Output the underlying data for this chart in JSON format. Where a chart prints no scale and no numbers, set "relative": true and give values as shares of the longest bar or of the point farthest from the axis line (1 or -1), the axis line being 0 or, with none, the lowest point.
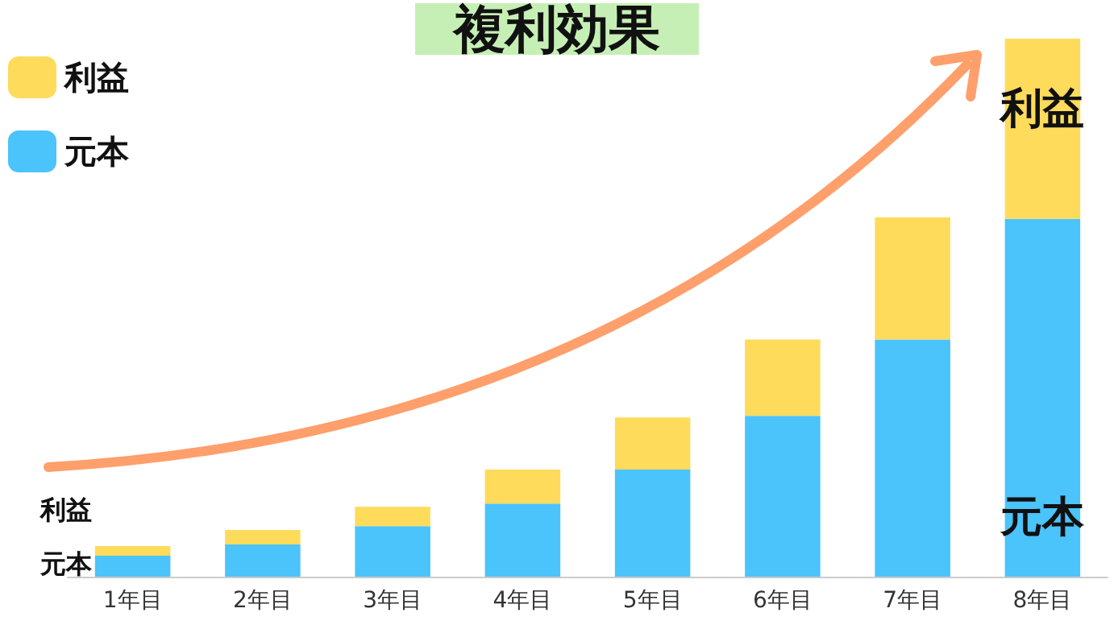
{
  "chart_data": {
    "type": "bar",
    "title": "複利効果",
    "relative": true,
    "stacked": true,
    "legend": "top left",
    "grid": false,
    "categories": [
      "1年目",
      "2年目",
      "3年目",
      "4年目",
      "5年目",
      "6年目",
      "7年目",
      "8年目"
    ],
    "series": [
      {
        "name": "元本",
        "color": "#4bc3fb",
        "values": [
          0.039,
          0.06,
          0.094,
          0.136,
          0.199,
          0.299,
          0.441,
          0.665
        ]
      },
      {
        "name": "利益",
        "color": "#ffdb5c",
        "values": [
          0.018,
          0.027,
          0.036,
          0.063,
          0.097,
          0.142,
          0.227,
          0.335
        ]
      }
    ],
    "annotations": [
      "利益",
      "元本",
      "利益",
      "元本"
    ]
  }
}
